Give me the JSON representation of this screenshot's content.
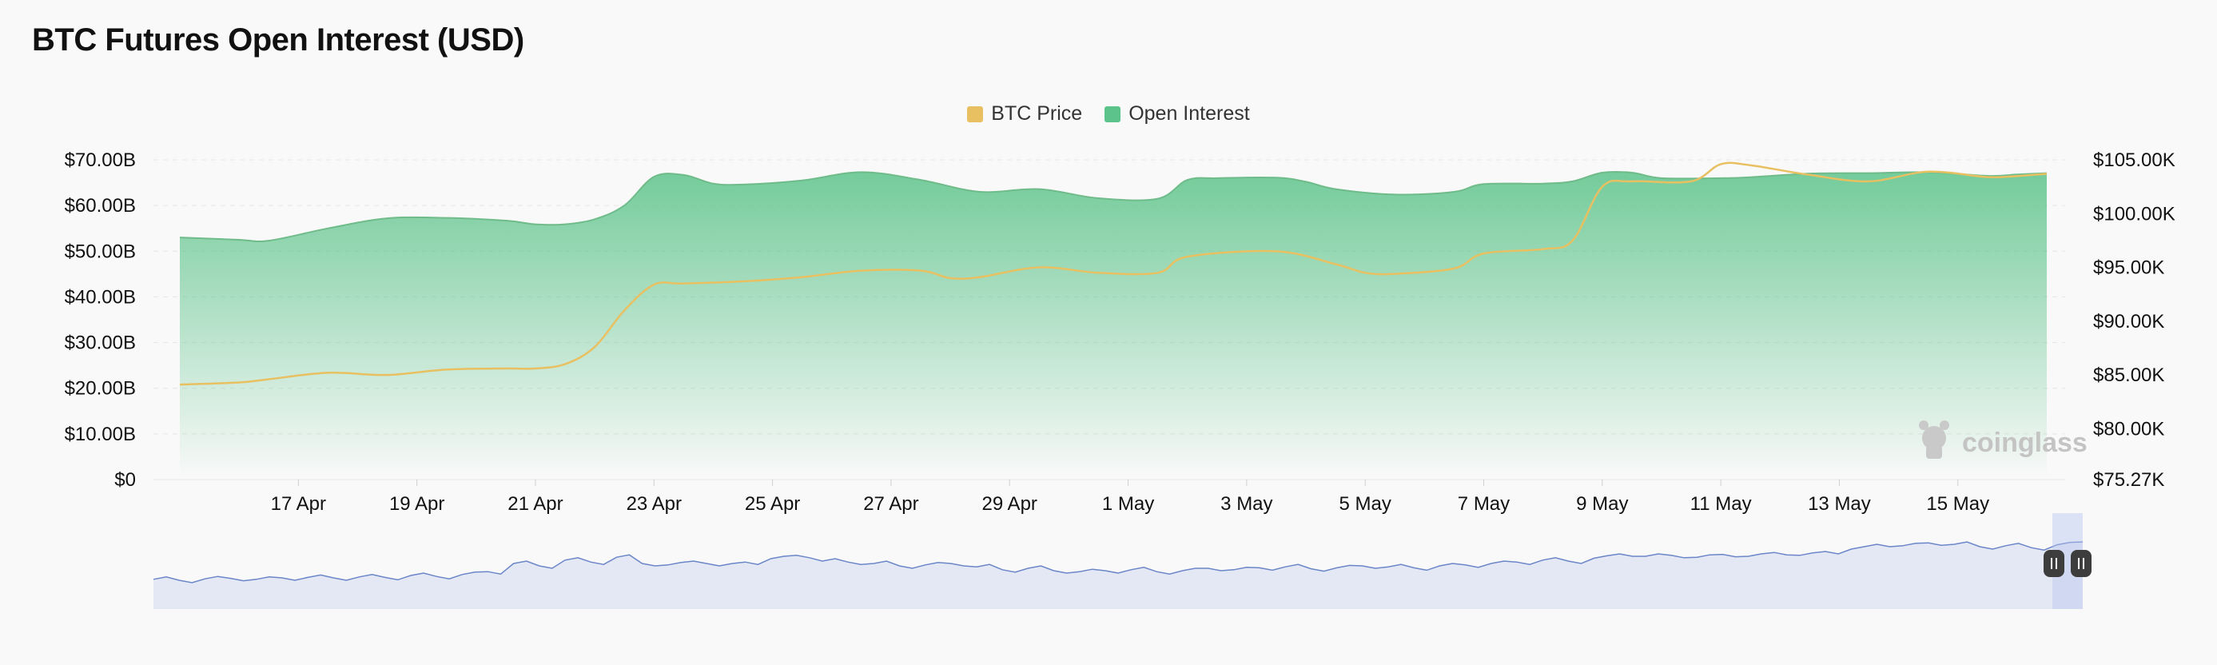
{
  "page": {
    "title": "BTC Futures Open Interest (USD)"
  },
  "colors": {
    "btc_price": "#e8c062",
    "open_interest": "#5cc38a",
    "open_interest_line": "#6fbb8a",
    "navigator_fill": "#e4e8f5",
    "navigator_line": "#6b86c8",
    "grid": "#e6e6e6"
  },
  "legend": [
    {
      "label": "BTC Price",
      "color": "#e8c062"
    },
    {
      "label": "Open Interest",
      "color": "#5cc38a"
    }
  ],
  "watermark": {
    "text": "coinglass"
  },
  "chart_data": {
    "type": "area",
    "title": "BTC Futures Open Interest (USD)",
    "x_axis": {
      "start": "2025-04-15",
      "end": "2025-05-16",
      "tick_labels": [
        "17 Apr",
        "19 Apr",
        "21 Apr",
        "23 Apr",
        "25 Apr",
        "27 Apr",
        "29 Apr",
        "1 May",
        "3 May",
        "5 May",
        "7 May",
        "9 May",
        "11 May",
        "13 May",
        "15 May"
      ],
      "tick_dates": [
        "2025-04-17",
        "2025-04-19",
        "2025-04-21",
        "2025-04-23",
        "2025-04-25",
        "2025-04-27",
        "2025-04-29",
        "2025-05-01",
        "2025-05-03",
        "2025-05-05",
        "2025-05-07",
        "2025-05-09",
        "2025-05-11",
        "2025-05-13",
        "2025-05-15"
      ]
    },
    "y_left": {
      "label": "",
      "range": [
        0,
        70000000000
      ],
      "tick_values": [
        0,
        10000000000,
        20000000000,
        30000000000,
        40000000000,
        50000000000,
        60000000000,
        70000000000
      ],
      "tick_labels": [
        "$0",
        "$10.00B",
        "$20.00B",
        "$30.00B",
        "$40.00B",
        "$50.00B",
        "$60.00B",
        "$70.00B"
      ]
    },
    "y_right": {
      "label": "",
      "range": [
        75270,
        105000
      ],
      "tick_values": [
        75270,
        80000,
        85000,
        90000,
        95000,
        100000,
        105000
      ],
      "tick_labels": [
        "$75.27K",
        "$80.00K",
        "$85.00K",
        "$90.00K",
        "$95.00K",
        "$100.00K",
        "$105.00K"
      ]
    },
    "grid": true,
    "legend_position": "top-center",
    "series": [
      {
        "name": "Open Interest",
        "axis": "left",
        "unit": "USD",
        "points": [
          [
            "2025-04-15T00:00",
            53.0
          ],
          [
            "2025-04-16T00:00",
            52.5
          ],
          [
            "2025-04-16T12:00",
            52.3
          ],
          [
            "2025-04-17T12:00",
            55.0
          ],
          [
            "2025-04-18T12:00",
            57.2
          ],
          [
            "2025-04-19T12:00",
            57.3
          ],
          [
            "2025-04-20T12:00",
            56.7
          ],
          [
            "2025-04-21T00:00",
            55.9
          ],
          [
            "2025-04-21T12:00",
            55.9
          ],
          [
            "2025-04-22T00:00",
            57.0
          ],
          [
            "2025-04-22T12:00",
            60.0
          ],
          [
            "2025-04-23T00:00",
            66.3
          ],
          [
            "2025-04-23T12:00",
            66.7
          ],
          [
            "2025-04-24T00:00",
            64.8
          ],
          [
            "2025-04-24T12:00",
            64.6
          ],
          [
            "2025-04-25T12:00",
            65.5
          ],
          [
            "2025-04-26T12:00",
            67.3
          ],
          [
            "2025-04-27T12:00",
            65.6
          ],
          [
            "2025-04-28T12:00",
            63.0
          ],
          [
            "2025-04-29T12:00",
            63.6
          ],
          [
            "2025-04-30T12:00",
            61.6
          ],
          [
            "2025-05-01T12:00",
            61.5
          ],
          [
            "2025-05-02T00:00",
            65.6
          ],
          [
            "2025-05-02T12:00",
            66.0
          ],
          [
            "2025-05-03T12:00",
            66.1
          ],
          [
            "2025-05-04T00:00",
            65.2
          ],
          [
            "2025-05-04T12:00",
            63.6
          ],
          [
            "2025-05-05T12:00",
            62.4
          ],
          [
            "2025-05-06T12:00",
            63.0
          ],
          [
            "2025-05-07T00:00",
            64.7
          ],
          [
            "2025-05-08T00:00",
            64.8
          ],
          [
            "2025-05-08T12:00",
            65.3
          ],
          [
            "2025-05-09T00:00",
            67.2
          ],
          [
            "2025-05-09T12:00",
            67.2
          ],
          [
            "2025-05-10T00:00",
            66.0
          ],
          [
            "2025-05-11T00:00",
            66.0
          ],
          [
            "2025-05-11T12:00",
            66.2
          ],
          [
            "2025-05-12T12:00",
            67.0
          ],
          [
            "2025-05-13T12:00",
            67.1
          ],
          [
            "2025-05-14T12:00",
            67.3
          ],
          [
            "2025-05-15T12:00",
            66.5
          ],
          [
            "2025-05-16T00:00",
            66.8
          ],
          [
            "2025-05-16T12:00",
            67.1
          ]
        ]
      },
      {
        "name": "BTC Price",
        "axis": "right",
        "unit": "USD",
        "points": [
          [
            "2025-04-15T00:00",
            84100
          ],
          [
            "2025-04-16T00:00",
            84300
          ],
          [
            "2025-04-16T12:00",
            84600
          ],
          [
            "2025-04-17T12:00",
            85200
          ],
          [
            "2025-04-18T12:00",
            85000
          ],
          [
            "2025-04-19T12:00",
            85500
          ],
          [
            "2025-04-20T12:00",
            85600
          ],
          [
            "2025-04-21T00:00",
            85600
          ],
          [
            "2025-04-21T12:00",
            86000
          ],
          [
            "2025-04-22T00:00",
            87600
          ],
          [
            "2025-04-22T12:00",
            91000
          ],
          [
            "2025-04-23T00:00",
            93400
          ],
          [
            "2025-04-23T12:00",
            93500
          ],
          [
            "2025-04-24T12:00",
            93700
          ],
          [
            "2025-04-25T12:00",
            94100
          ],
          [
            "2025-04-26T12:00",
            94700
          ],
          [
            "2025-04-27T12:00",
            94700
          ],
          [
            "2025-04-28T00:00",
            94000
          ],
          [
            "2025-04-28T12:00",
            94100
          ],
          [
            "2025-04-29T12:00",
            95000
          ],
          [
            "2025-04-30T12:00",
            94500
          ],
          [
            "2025-05-01T12:00",
            94500
          ],
          [
            "2025-05-02T00:00",
            96000
          ],
          [
            "2025-05-03T12:00",
            96500
          ],
          [
            "2025-05-04T12:00",
            95300
          ],
          [
            "2025-05-05T00:00",
            94500
          ],
          [
            "2025-05-05T12:00",
            94400
          ],
          [
            "2025-05-06T12:00",
            94900
          ],
          [
            "2025-05-07T00:00",
            96300
          ],
          [
            "2025-05-08T00:00",
            96700
          ],
          [
            "2025-05-08T12:00",
            97500
          ],
          [
            "2025-05-09T00:00",
            102500
          ],
          [
            "2025-05-09T12:00",
            103000
          ],
          [
            "2025-05-10T12:00",
            103000
          ],
          [
            "2025-05-11T00:00",
            104600
          ],
          [
            "2025-05-11T12:00",
            104500
          ],
          [
            "2025-05-12T12:00",
            103600
          ],
          [
            "2025-05-13T12:00",
            103000
          ],
          [
            "2025-05-14T12:00",
            103900
          ],
          [
            "2025-05-15T12:00",
            103400
          ],
          [
            "2025-05-16T00:00",
            103500
          ],
          [
            "2025-05-16T12:00",
            103700
          ]
        ]
      }
    ],
    "navigator": {
      "type": "area",
      "selected_range": [
        "2025-05-15",
        "2025-05-16"
      ],
      "range_start": "2024-11-01",
      "range_end": "2025-05-16",
      "values": [
        0.22,
        0.2,
        0.23,
        0.24,
        0.22,
        0.25,
        0.26,
        0.25,
        0.27,
        0.26,
        0.3,
        0.28,
        0.32,
        0.38,
        0.55,
        0.5,
        0.62,
        0.58,
        0.68,
        0.55,
        0.52,
        0.6,
        0.5,
        0.58,
        0.65,
        0.72,
        0.6,
        0.58,
        0.55,
        0.5,
        0.52,
        0.55,
        0.48,
        0.42,
        0.45,
        0.4,
        0.38,
        0.4,
        0.42,
        0.38,
        0.4,
        0.45,
        0.42,
        0.46,
        0.48,
        0.44,
        0.46,
        0.5,
        0.48,
        0.46,
        0.5,
        0.52,
        0.55,
        0.58,
        0.62,
        0.6,
        0.66,
        0.75,
        0.7,
        0.72,
        0.68,
        0.74,
        0.7,
        0.78,
        0.72,
        0.8,
        0.85,
        0.95,
        0.92,
        0.98,
        0.95,
        0.9,
        0.92,
        0.88,
        0.94,
        1.0
      ]
    }
  }
}
